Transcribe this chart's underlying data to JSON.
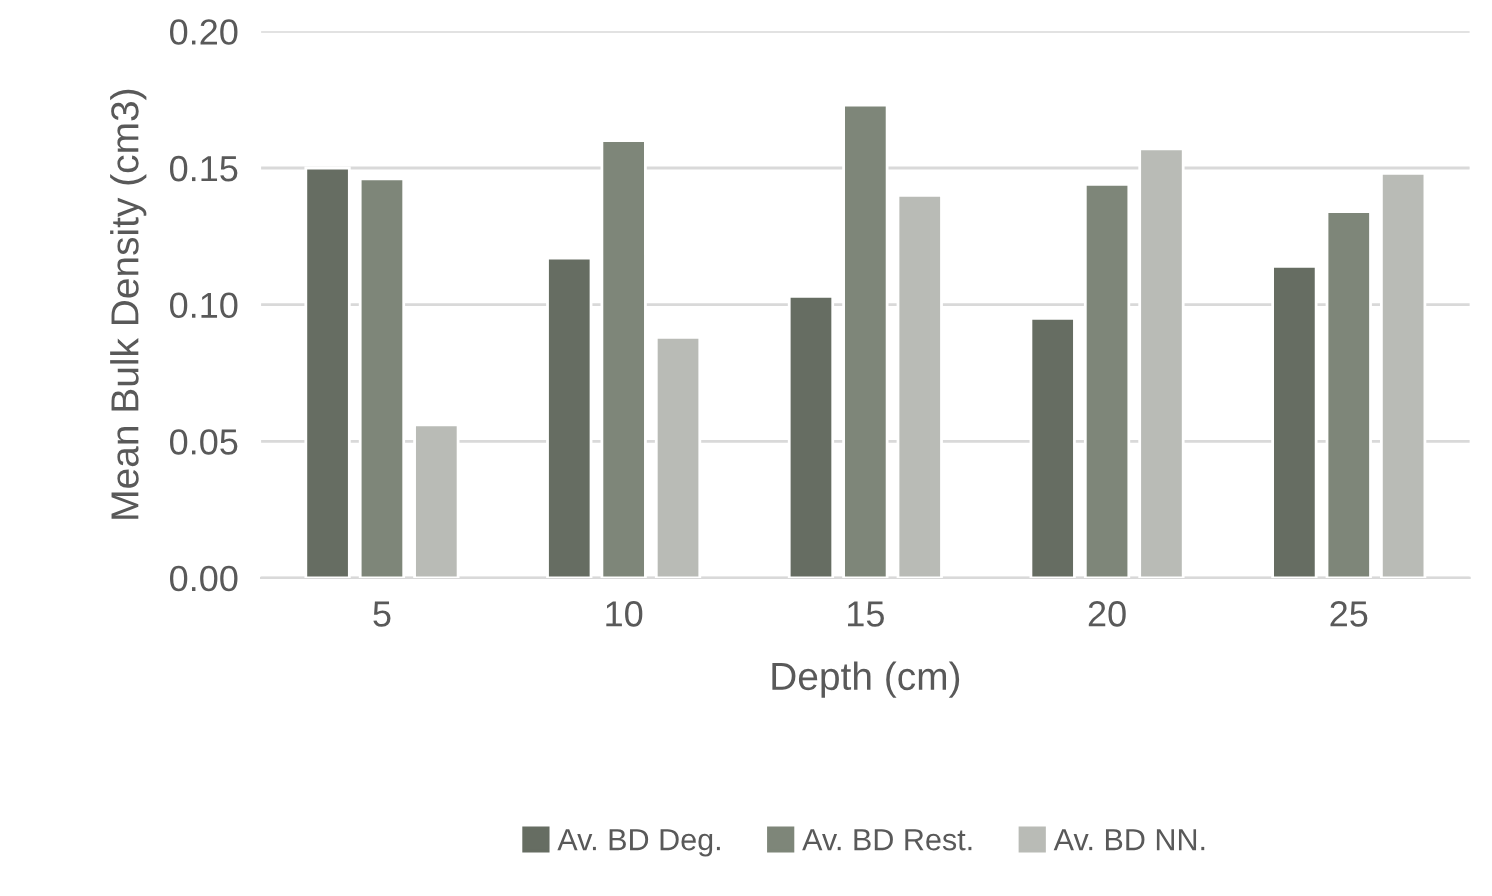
{
  "chart_data": {
    "type": "bar",
    "xlabel": "Depth (cm)",
    "ylabel": "Mean Bulk Density (cm3)",
    "categories": [
      "5",
      "10",
      "15",
      "20",
      "25"
    ],
    "series": [
      {
        "name": "Av. BD Deg.",
        "color": "#666d62",
        "values": [
          0.15,
          0.117,
          0.103,
          0.095,
          0.114
        ]
      },
      {
        "name": "Av. BD Rest.",
        "color": "#7e8679",
        "values": [
          0.146,
          0.16,
          0.173,
          0.144,
          0.134
        ]
      },
      {
        "name": "Av. BD NN.",
        "color": "#b9bbb6",
        "values": [
          0.056,
          0.088,
          0.14,
          0.157,
          0.148
        ]
      }
    ],
    "ylim": [
      0,
      0.2
    ],
    "yticks": [
      {
        "value": 0,
        "label": "0.00"
      },
      {
        "value": 0.05,
        "label": "0.05"
      },
      {
        "value": 0.1,
        "label": "0.10"
      },
      {
        "value": 0.15,
        "label": "0.15"
      },
      {
        "value": 0.2,
        "label": "0.20"
      }
    ],
    "grid": "y",
    "legend": "bottom"
  }
}
